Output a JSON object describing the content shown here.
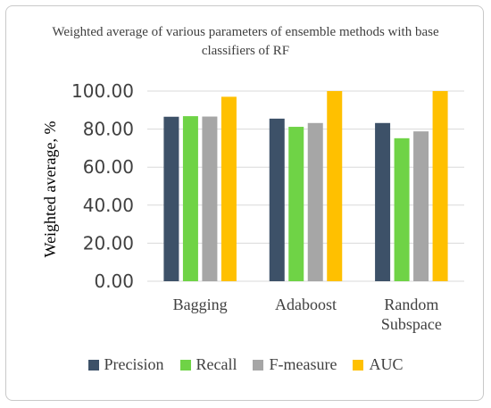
{
  "chart_data": {
    "type": "bar",
    "title": "Weighted average of various parameters of ensemble methods with base classifiers of  RF",
    "ylabel": "Weighted average, %",
    "xlabel": "",
    "ylim": [
      0,
      100
    ],
    "yticks": [
      "0.00",
      "20.00",
      "40.00",
      "60.00",
      "80.00",
      "100.00"
    ],
    "categories": [
      "Bagging",
      "Adaboost",
      "Random Subspace"
    ],
    "category_lines": [
      [
        "Bagging"
      ],
      [
        "Adaboost"
      ],
      [
        "Random",
        "Subspace"
      ]
    ],
    "grid": true,
    "legend_position": "bottom",
    "series": [
      {
        "name": "Precision",
        "color": "#3d5168",
        "values": [
          86.5,
          85.5,
          83.2
        ]
      },
      {
        "name": "Recall",
        "color": "#6fd346",
        "values": [
          86.8,
          81.2,
          75.2
        ]
      },
      {
        "name": "F-measure",
        "color": "#a6a6a6",
        "values": [
          86.6,
          83.2,
          78.8
        ]
      },
      {
        "name": "AUC",
        "color": "#ffc000",
        "values": [
          97.0,
          100.0,
          100.0
        ]
      }
    ]
  }
}
